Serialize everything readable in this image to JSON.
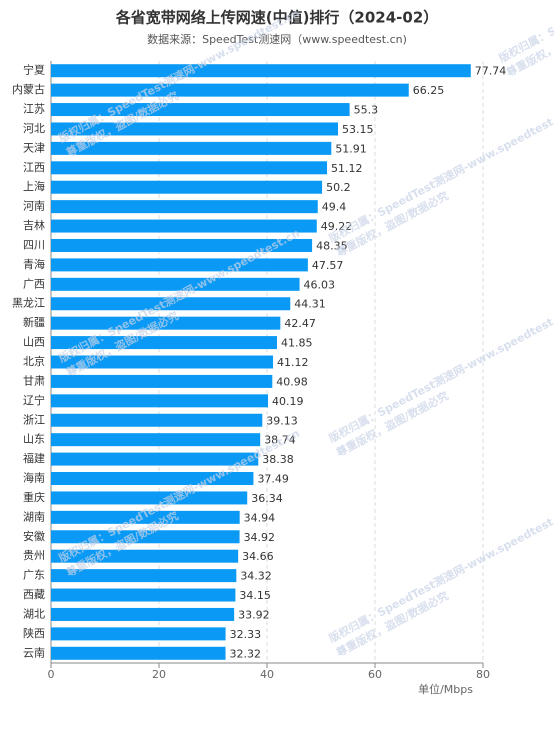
{
  "chart_data": {
    "type": "hbar",
    "title": "各省宽带网络上传网速(中值)排行（2024-02）",
    "subtitle": "数据来源：SpeedTest测速网（www.speedtest.cn)",
    "x_label": "单位/Mbps",
    "categories": [
      "宁夏",
      "内蒙古",
      "江苏",
      "河北",
      "天津",
      "江西",
      "上海",
      "河南",
      "吉林",
      "四川",
      "青海",
      "广西",
      "黑龙江",
      "新疆",
      "山西",
      "北京",
      "甘肃",
      "辽宁",
      "浙江",
      "山东",
      "福建",
      "海南",
      "重庆",
      "湖南",
      "安徽",
      "贵州",
      "广东",
      "西藏",
      "湖北",
      "陕西",
      "云南"
    ],
    "values": [
      77.74,
      66.25,
      55.3,
      53.15,
      51.91,
      51.12,
      50.2,
      49.4,
      49.22,
      48.35,
      47.57,
      46.03,
      44.31,
      42.47,
      41.85,
      41.12,
      40.98,
      40.19,
      39.13,
      38.74,
      38.38,
      37.49,
      36.34,
      34.94,
      34.92,
      34.66,
      34.32,
      34.15,
      33.92,
      32.33,
      32.32
    ],
    "color": "#0a9af5",
    "xlim": [
      0,
      80
    ],
    "xticks": [
      0,
      20,
      40,
      60,
      80
    ],
    "grid": true,
    "watermark": [
      "版权归属：SpeedTest测速网-www.speedtest.cn",
      "尊重版权，盗图/数据必究"
    ]
  }
}
